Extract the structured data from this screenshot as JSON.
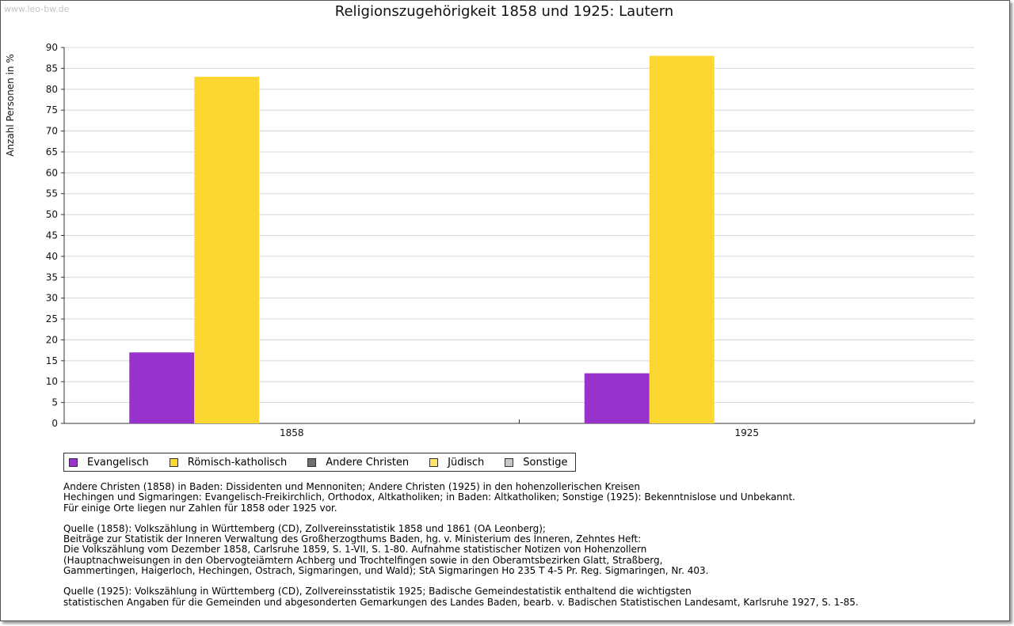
{
  "watermark": "www.leo-bw.de",
  "chart_data": {
    "type": "bar",
    "title": "Religionszugehörigkeit 1858 und 1925: Lautern",
    "xlabel": "",
    "ylabel": "Anzahl Personen in %",
    "ylim": [
      0,
      90
    ],
    "y_ticks": [
      0,
      5,
      10,
      15,
      20,
      25,
      30,
      35,
      40,
      45,
      50,
      55,
      60,
      65,
      70,
      75,
      80,
      85,
      90
    ],
    "grid": true,
    "legend_position": "bottom-left",
    "categories": [
      "1858",
      "1925"
    ],
    "series": [
      {
        "name": "Evangelisch",
        "color": "#9932cc",
        "values": [
          17,
          12
        ]
      },
      {
        "name": "Römisch-katholisch",
        "color": "#fdd731",
        "values": [
          83,
          88
        ]
      },
      {
        "name": "Andere Christen",
        "color": "#707070",
        "values": [
          0,
          0
        ]
      },
      {
        "name": "Jüdisch",
        "color": "#fde36c",
        "values": [
          0,
          0
        ]
      },
      {
        "name": "Sonstige",
        "color": "#c8c8c8",
        "values": [
          0,
          0
        ]
      }
    ]
  },
  "notes": [
    [
      "Andere Christen (1858) in Baden: Dissidenten und Mennoniten; Andere Christen (1925) in den hohenzollerischen Kreisen",
      "Hechingen und Sigmaringen: Evangelisch-Freikirchlich, Orthodox, Altkatholiken; in Baden: Altkatholiken; Sonstige (1925): Bekenntnislose und Unbekannt.",
      "Für einige Orte liegen nur Zahlen für 1858 oder 1925 vor."
    ],
    [
      "Quelle (1858): Volkszählung in Württemberg (CD), Zollvereinsstatistik 1858 und 1861 (OA Leonberg);",
      "Beiträge zur Statistik der Inneren Verwaltung des Großherzogthums Baden, hg. v. Ministerium des Inneren, Zehntes Heft:",
      "Die Volkszählung vom Dezember 1858, Carlsruhe 1859, S. 1-VII, S. 1-80. Aufnahme statistischer Notizen von Hohenzollern",
      "(Hauptnachweisungen in den Obervogteiämtern Achberg und Trochtelfingen sowie in den Oberamtsbezirken Glatt, Straßberg,",
      "Gammertingen, Haigerloch, Hechingen, Ostrach, Sigmaringen, und Wald); StA Sigmaringen Ho 235 T 4-5 Pr. Reg. Sigmaringen, Nr. 403."
    ],
    [
      "Quelle (1925): Volkszählung in Württemberg (CD), Zollvereinsstatistik 1925; Badische Gemeindestatistik enthaltend die wichtigsten",
      "statistischen Angaben für die Gemeinden und abgesonderten Gemarkungen des Landes Baden, bearb. v. Badischen Statistischen Landesamt, Karlsruhe 1927, S. 1-85."
    ]
  ]
}
